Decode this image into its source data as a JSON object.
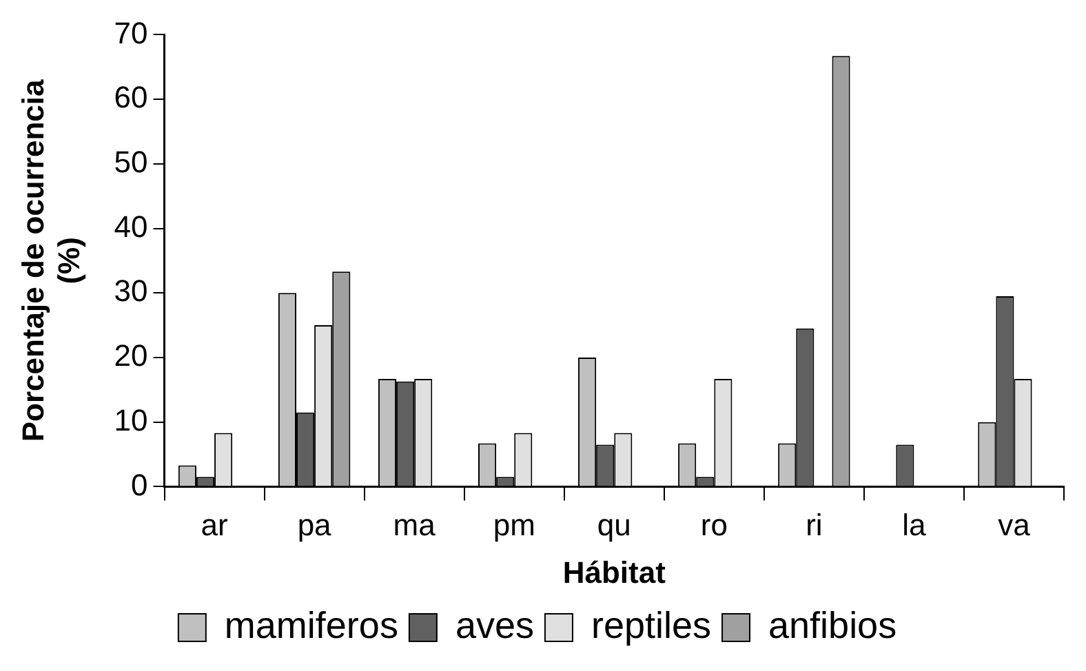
{
  "chart_data": {
    "type": "bar",
    "xlabel": "Hábitat",
    "ylabel": "Porcentaje de ocurrencia (%)",
    "categories": [
      "ar",
      "pa",
      "ma",
      "pm",
      "qu",
      "ro",
      "ri",
      "la",
      "va"
    ],
    "series": [
      {
        "name": "mamiferos",
        "color": "#c0c0c0",
        "values": [
          3.3,
          30,
          16.7,
          6.7,
          20,
          6.7,
          6.7,
          0,
          10
        ]
      },
      {
        "name": "aves",
        "color": "#606060",
        "values": [
          1.5,
          11.5,
          16.3,
          1.5,
          6.5,
          1.5,
          24.5,
          6.5,
          29.5
        ]
      },
      {
        "name": "reptiles",
        "color": "#e0e0e0",
        "values": [
          8.3,
          25,
          16.7,
          8.3,
          8.3,
          16.7,
          0,
          0,
          16.7
        ]
      },
      {
        "name": "anfibios",
        "color": "#a0a0a0",
        "values": [
          0,
          33.3,
          0,
          0,
          0,
          0,
          66.7,
          0,
          0
        ]
      }
    ],
    "ylim": [
      0,
      70
    ],
    "yticks": [
      0,
      10,
      20,
      30,
      40,
      50,
      60,
      70
    ],
    "grid": false,
    "legend": "bottom"
  }
}
